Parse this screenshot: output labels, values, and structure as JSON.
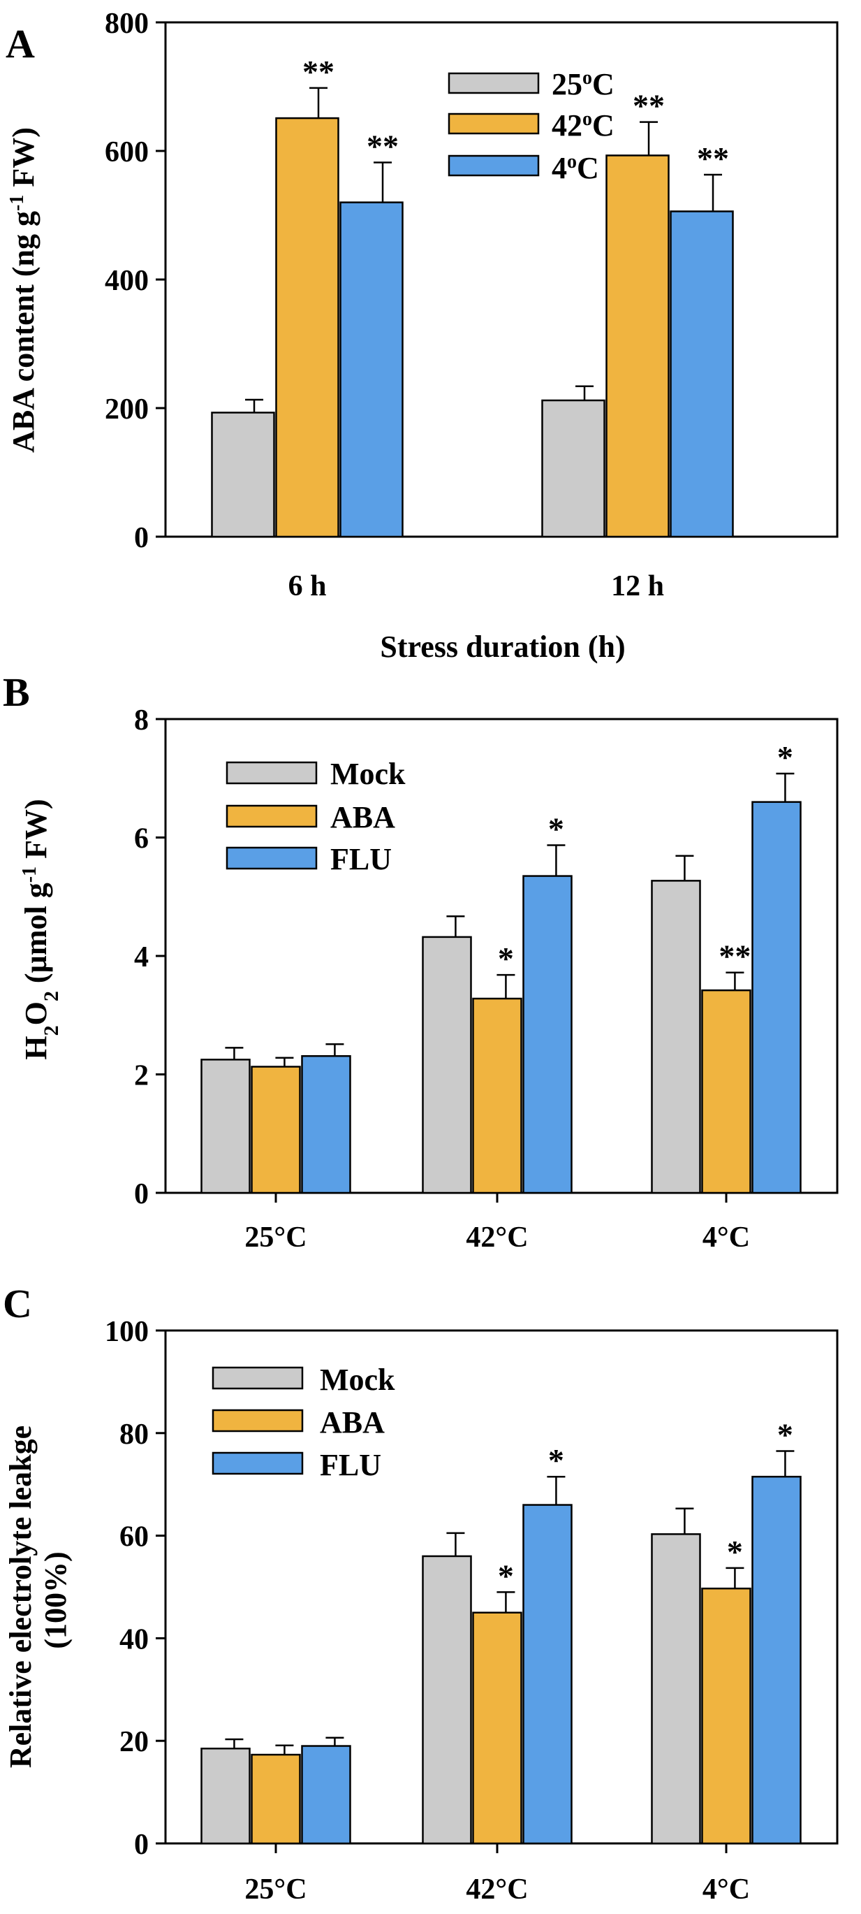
{
  "colors": {
    "gray": "#cbcbcb",
    "orange": "#f0b440",
    "blue": "#5a9fe6"
  },
  "chart_data": [
    {
      "panel": "A",
      "type": "bar",
      "categories": [
        "6 h",
        "12 h"
      ],
      "series": [
        {
          "name": "25",
          "values": [
            193,
            212
          ],
          "errors": [
            20,
            22
          ],
          "sig": [
            "",
            ""
          ],
          "color": "gray"
        },
        {
          "name": "42",
          "values": [
            651,
            593
          ],
          "errors": [
            47,
            52
          ],
          "sig": [
            "**",
            "**"
          ],
          "color": "orange"
        },
        {
          "name": "4",
          "values": [
            520,
            506
          ],
          "errors": [
            62,
            57
          ],
          "sig": [
            "**",
            "**"
          ],
          "color": "blue"
        }
      ],
      "legend_suffix": "C",
      "legend_sup": "o",
      "ylim": [
        0,
        800
      ],
      "yticks": [
        0,
        200,
        400,
        600,
        800
      ],
      "xlabel": "Stress duration (h)",
      "ylabel": {
        "main": "ABA content (ng g",
        "sup": "-1",
        "end": " FW)"
      },
      "legend_position": "top-center"
    },
    {
      "panel": "B",
      "type": "bar",
      "categories": [
        "25°C",
        "42°C",
        "4°C"
      ],
      "series": [
        {
          "name": "Mock",
          "values": [
            2.25,
            4.32,
            5.27
          ],
          "errors": [
            0.2,
            0.35,
            0.42
          ],
          "sig": [
            "",
            "",
            ""
          ],
          "color": "gray"
        },
        {
          "name": "ABA",
          "values": [
            2.13,
            3.28,
            3.42
          ],
          "errors": [
            0.15,
            0.4,
            0.3
          ],
          "sig": [
            "",
            "*",
            "**"
          ],
          "color": "orange"
        },
        {
          "name": "FLU",
          "values": [
            2.31,
            5.35,
            6.6
          ],
          "errors": [
            0.2,
            0.52,
            0.48
          ],
          "sig": [
            "",
            "*",
            "*"
          ],
          "color": "blue"
        }
      ],
      "ylim": [
        0,
        8
      ],
      "yticks": [
        0,
        2,
        4,
        6,
        8
      ],
      "xlabel": "",
      "ylabel": {
        "p1": "H",
        "s1": "2",
        "p2": "O",
        "s2": "2",
        "p3": " (µmol g",
        "sup": "-1",
        "end": " FW)"
      },
      "legend_position": "top-left"
    },
    {
      "panel": "C",
      "type": "bar",
      "categories": [
        "25°C",
        "42°C",
        "4°C"
      ],
      "series": [
        {
          "name": "Mock",
          "values": [
            18.5,
            56,
            60.3
          ],
          "errors": [
            1.8,
            4.5,
            5
          ],
          "sig": [
            "",
            "",
            ""
          ],
          "color": "gray"
        },
        {
          "name": "ABA",
          "values": [
            17.3,
            45,
            49.7
          ],
          "errors": [
            1.8,
            4,
            4
          ],
          "sig": [
            "",
            "*",
            "*"
          ],
          "color": "orange"
        },
        {
          "name": "FLU",
          "values": [
            19,
            66,
            71.5
          ],
          "errors": [
            1.6,
            5.5,
            5
          ],
          "sig": [
            "",
            "*",
            "*"
          ],
          "color": "blue"
        }
      ],
      "ylim": [
        0,
        100
      ],
      "yticks": [
        0,
        20,
        40,
        60,
        80,
        100
      ],
      "xlabel": "",
      "ylabel": {
        "line1": "Relative electrolyte leakge",
        "line2": "(100%)"
      },
      "legend_position": "top-left"
    }
  ]
}
